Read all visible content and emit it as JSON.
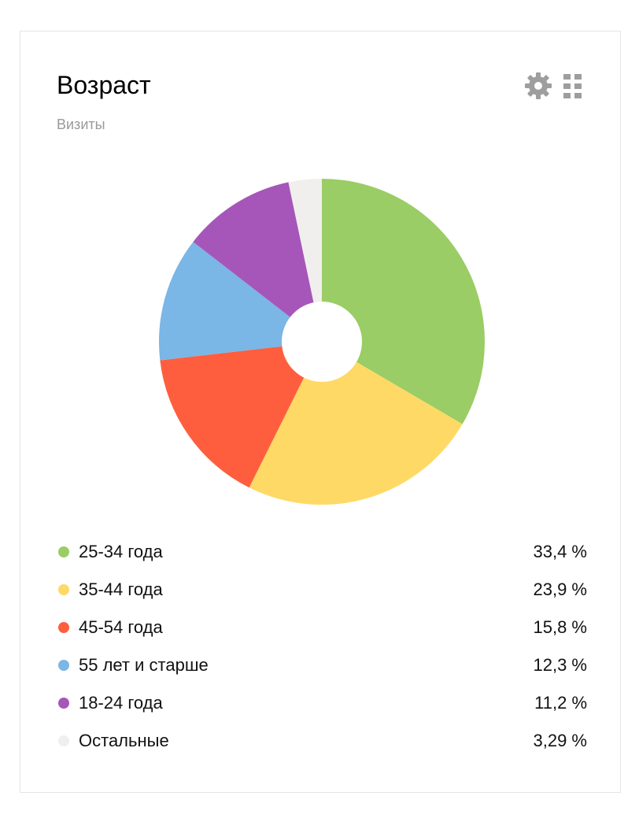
{
  "widget": {
    "title": "Возраст",
    "subtitle": "Визиты",
    "icons": [
      "gear-icon",
      "drag-grip-icon"
    ]
  },
  "colors": {
    "background": "#ffffff",
    "border": "#e5e5e5",
    "subtitle": "#999999",
    "icon": "#9e9e9e"
  },
  "chart_data": {
    "type": "pie",
    "donut": true,
    "categories": [
      "25-34 года",
      "35-44 года",
      "45-54 года",
      "55 лет и старше",
      "18-24 года",
      "Остальные"
    ],
    "values": [
      33.4,
      23.9,
      15.8,
      12.3,
      11.2,
      3.29
    ],
    "value_labels": [
      "33,4 %",
      "23,9 %",
      "15,8 %",
      "12,3 %",
      "11,2 %",
      "3,29 %"
    ],
    "colors": [
      "#9acd65",
      "#ffd966",
      "#ff5e3e",
      "#7ab6e6",
      "#a656b8",
      "#f0efed"
    ],
    "legend_placement": "bottom",
    "start_angle": "12 o'clock",
    "direction": "clockwise"
  }
}
